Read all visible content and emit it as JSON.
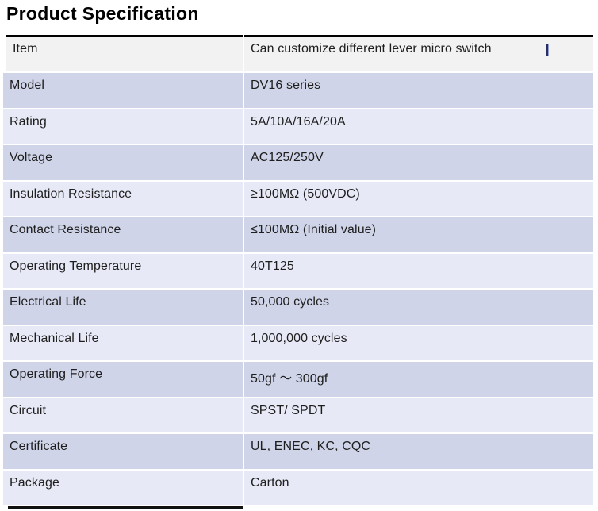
{
  "page": {
    "title": "Product Specification"
  },
  "table": {
    "rows": [
      {
        "label": "Item",
        "value": "Can customize different lever micro switch"
      },
      {
        "label": "Model",
        "value": "DV16 series"
      },
      {
        "label": "Rating",
        "value": "5A/10A/16A/20A"
      },
      {
        "label": "Voltage",
        "value": "AC125/250V"
      },
      {
        "label": "Insulation Resistance",
        "value": "≥100MΩ (500VDC)"
      },
      {
        "label": "Contact Resistance",
        "value": "≤100MΩ (Initial value)"
      },
      {
        "label": "Operating Temperature",
        "value": "40T125"
      },
      {
        "label": "Electrical Life",
        "value": "50,000 cycles"
      },
      {
        "label": "Mechanical Life",
        "value": "1,000,000 cycles"
      },
      {
        "label": "Operating Force",
        "value": "50gf ～ 300gf"
      },
      {
        "label": "Circuit",
        "value": "SPST/ SPDT"
      },
      {
        "label": "Certificate",
        "value": "UL, ENEC, KC, CQC"
      },
      {
        "label": "Package",
        "value": "Carton"
      }
    ]
  },
  "colors": {
    "row_first_bg": "#f2f2f2",
    "row_dark_bg": "#cfd4e8",
    "row_light_bg": "#e7eaf6",
    "table_border": "#000000",
    "text": "#1e1e1e"
  }
}
